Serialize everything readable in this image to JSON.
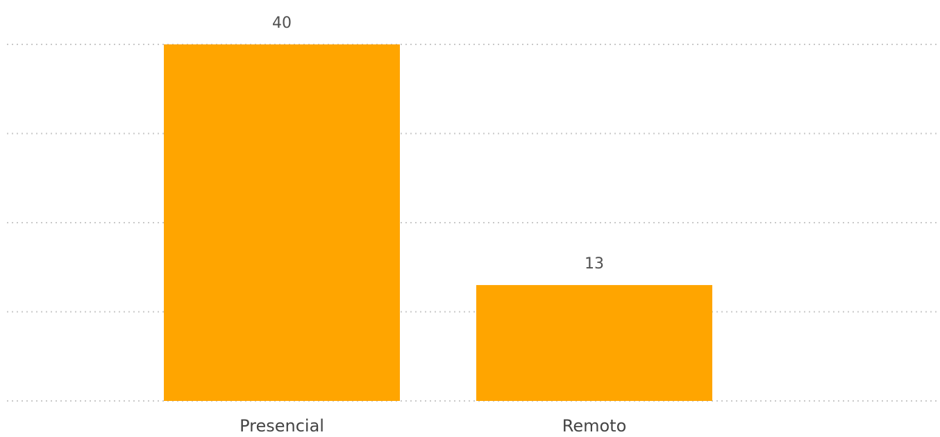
{
  "chart_data": {
    "type": "bar",
    "categories": [
      "Presencial",
      "Remoto"
    ],
    "values": [
      40,
      13
    ],
    "title": "",
    "xlabel": "",
    "ylabel": "",
    "ylim": [
      0,
      40
    ],
    "grid": true,
    "gridlines": [
      0,
      10,
      20,
      30,
      40
    ],
    "data_labels": [
      "40",
      "13"
    ],
    "bar_color": "#FFA500",
    "gridline_color": "#C8C8C8"
  }
}
